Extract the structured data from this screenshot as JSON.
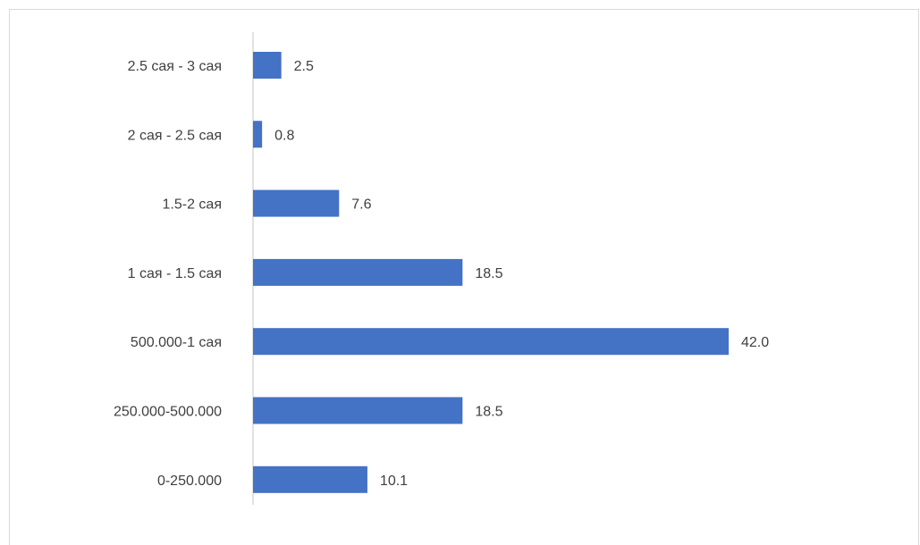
{
  "chart_data": {
    "type": "bar",
    "orientation": "horizontal",
    "categories": [
      "2.5 сая - 3 сая",
      "2 сая - 2.5 сая",
      "1.5-2 сая",
      "1 сая - 1.5 сая",
      "500.000-1 сая",
      "250.000-500.000",
      "0-250.000"
    ],
    "values": [
      2.5,
      0.8,
      7.6,
      18.5,
      42.0,
      18.5,
      10.1
    ],
    "value_labels": [
      "2.5",
      "0.8",
      "7.6",
      "18.5",
      "42.0",
      "18.5",
      "10.1"
    ],
    "bar_color": "#4472c4",
    "axis_color": "#d9d9d9",
    "text_color": "#404040",
    "xlim": [
      0,
      42.0
    ],
    "grid": false,
    "legend": "none",
    "title": "",
    "xlabel": "",
    "ylabel": ""
  }
}
